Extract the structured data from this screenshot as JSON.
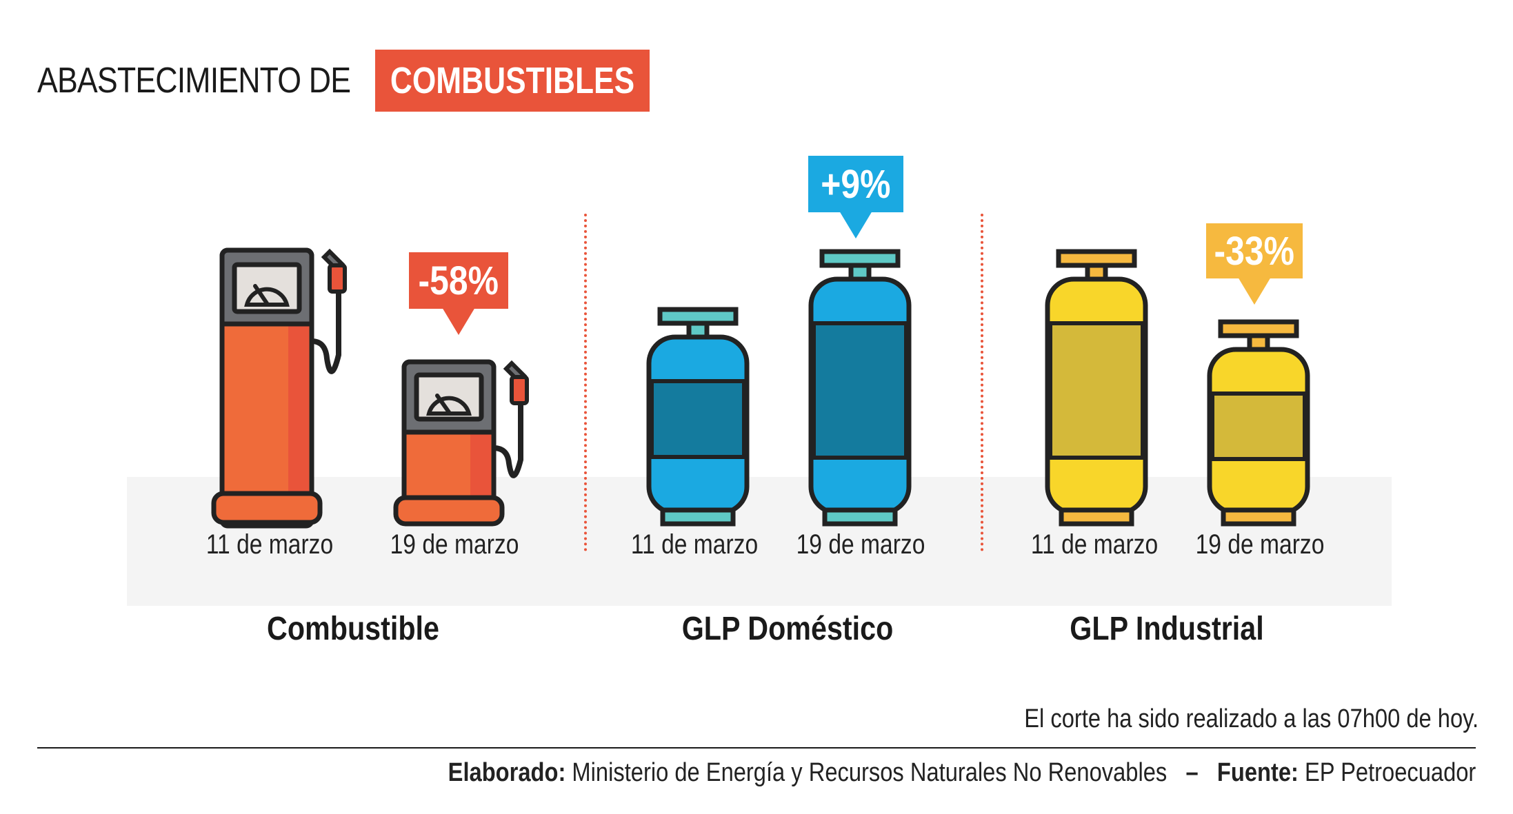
{
  "title": {
    "plain": "ABASTECIMIENTO DE",
    "highlight": "COMBUSTIBLES"
  },
  "dates": {
    "first": "11 de marzo",
    "second": "19 de marzo"
  },
  "groups": [
    {
      "name": "Combustible",
      "change_label": "-58%",
      "badge_color": "#e9543a"
    },
    {
      "name": "GLP Doméstico",
      "change_label": "+9%",
      "badge_color": "#1ba9e1"
    },
    {
      "name": "GLP Industrial",
      "change_label": "-33%",
      "badge_color": "#f6b93f"
    }
  ],
  "note": "El corte ha sido realizado a las 07h00 de hoy.",
  "credits": {
    "elaborado_label": "Elaborado:",
    "elaborado_value": "Ministerio de Energía y Recursos Naturales No Renovables",
    "separator": "–",
    "fuente_label": "Fuente:",
    "fuente_value": "EP Petroecuador"
  },
  "chart_data": {
    "type": "bar",
    "categories": [
      "Combustible",
      "GLP Doméstico",
      "GLP Industrial"
    ],
    "x": [
      "11 de marzo",
      "19 de marzo"
    ],
    "series": [
      {
        "values": [
          100,
          100,
          100
        ]
      },
      {
        "values": [
          42,
          109,
          67
        ]
      }
    ],
    "change_pct": [
      -58,
      9,
      -33
    ],
    "icons": [
      "fuel-pump",
      "gas-cylinder-blue",
      "gas-cylinder-yellow"
    ],
    "colors": {
      "combustible": "#e9543a",
      "domestico": "#1ba9e1",
      "industrial": "#f8d62a"
    }
  }
}
